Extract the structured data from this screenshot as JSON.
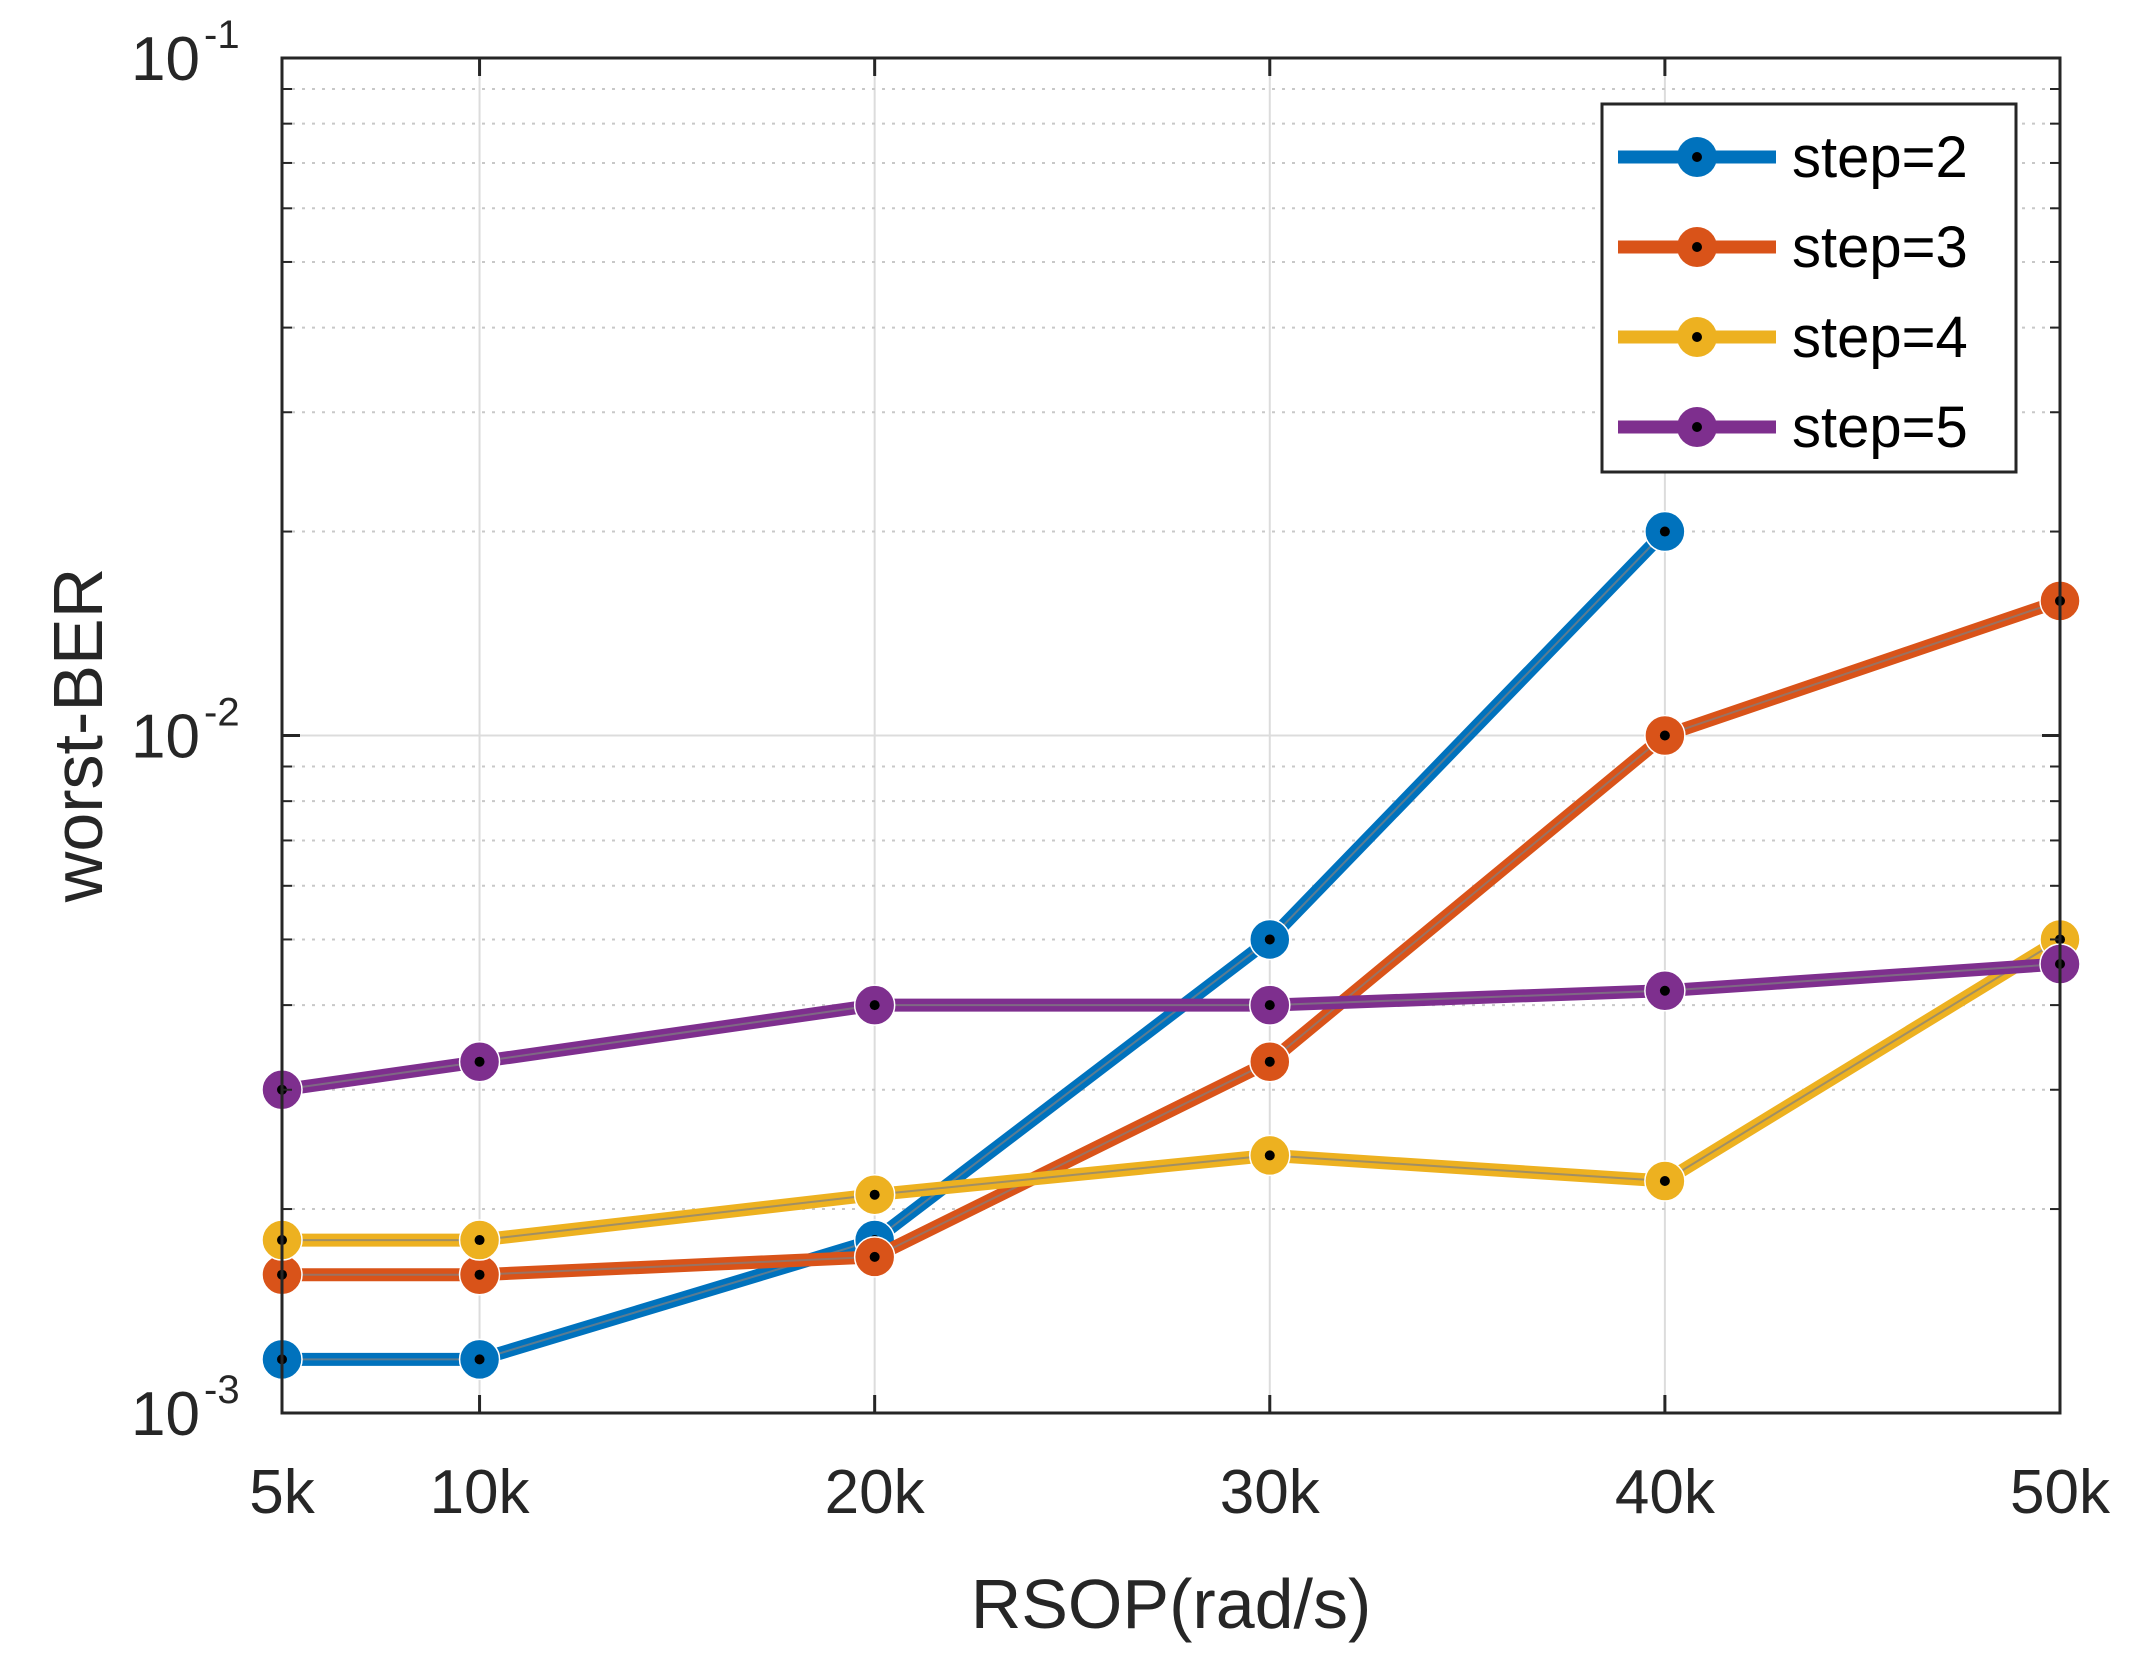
{
  "chart_data": {
    "type": "line",
    "title": "",
    "xlabel": "RSOP(rad/s)",
    "ylabel": "worst-BER",
    "yscale": "log",
    "x": [
      5000,
      10000,
      20000,
      30000,
      40000,
      50000
    ],
    "xlim": [
      5000,
      50000
    ],
    "ylim": [
      0.001,
      0.1
    ],
    "x_tick_labels": [
      "5k",
      "10k",
      "20k",
      "30k",
      "40k",
      "50k"
    ],
    "y_ticks": [
      {
        "value": 0.001,
        "base": "10",
        "exp": "-3"
      },
      {
        "value": 0.01,
        "base": "10",
        "exp": "-2"
      },
      {
        "value": 0.1,
        "base": "10",
        "exp": "-1"
      }
    ],
    "grid": true,
    "legend_position": "top-right",
    "series": [
      {
        "name": "step=2",
        "color": "#0072BD",
        "values": [
          0.0012,
          0.0012,
          0.0018,
          0.005,
          0.02,
          null
        ]
      },
      {
        "name": "step=3",
        "color": "#D95319",
        "values": [
          0.0016,
          0.0016,
          0.0017,
          0.0033,
          0.01,
          0.0158
        ]
      },
      {
        "name": "step=4",
        "color": "#EDB120",
        "values": [
          0.0018,
          0.0018,
          0.0021,
          0.0024,
          0.0022,
          0.005
        ]
      },
      {
        "name": "step=5",
        "color": "#7E2F8E",
        "values": [
          0.003,
          0.0033,
          0.004,
          0.004,
          0.0042,
          0.0046
        ]
      }
    ]
  }
}
